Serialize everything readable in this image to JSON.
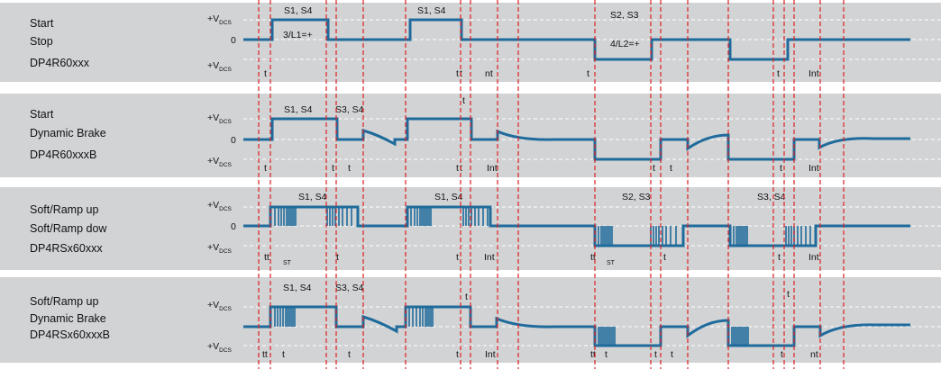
{
  "colors": {
    "band": "#d2d3d5",
    "signal": "#1f6b9c",
    "marker": "#e02020",
    "dashed_ref": "#ffffff",
    "text": "#111111"
  },
  "levels": {
    "plus_prefix": "+V",
    "plus_sub": "DCS",
    "zero": "0"
  },
  "panels": [
    {
      "labels": [
        "Start",
        "Stop",
        "DP4R60xxx"
      ],
      "annotations": [
        {
          "text": "S1, S4"
        },
        {
          "text": "S1, S4"
        },
        {
          "text": "S2, S3"
        },
        {
          "text": "3/L1=+"
        },
        {
          "text": "4/L2=+"
        },
        {
          "text": "t"
        },
        {
          "text": "t"
        },
        {
          "text": "t"
        },
        {
          "text": "nt"
        },
        {
          "text": "t"
        },
        {
          "text": "t"
        },
        {
          "text": "Int"
        }
      ]
    },
    {
      "labels": [
        "Start",
        "Dynamic Brake",
        "DP4R60xxxB"
      ],
      "annotations": [
        {
          "text": "S1, S4"
        },
        {
          "text": "S3, S4"
        },
        {
          "text": "t"
        },
        {
          "text": "t"
        },
        {
          "text": "t"
        },
        {
          "text": "t"
        },
        {
          "text": "t"
        },
        {
          "text": "Int"
        },
        {
          "text": "t"
        },
        {
          "text": "t"
        },
        {
          "text": "t"
        },
        {
          "text": "Int"
        },
        {
          "text": "t"
        }
      ]
    },
    {
      "labels": [
        "Soft/Ramp up",
        "Soft/Ramp dow",
        "DP4RSx60xxx"
      ],
      "annotations": [
        {
          "text": "S1, S4"
        },
        {
          "text": "S1, S4"
        },
        {
          "text": "S2, S3"
        },
        {
          "text": "S3, S4"
        },
        {
          "text": "tt"
        },
        {
          "text": "ST"
        },
        {
          "text": "t"
        },
        {
          "text": "t"
        },
        {
          "text": "Int"
        },
        {
          "text": "tt"
        },
        {
          "text": "ST"
        },
        {
          "text": "t"
        },
        {
          "text": "t"
        },
        {
          "text": "Int"
        }
      ]
    },
    {
      "labels": [
        "Soft/Ramp up",
        "Dynamic Brake",
        "DP4RSx60xxxB"
      ],
      "annotations": [
        {
          "text": "S1, S4"
        },
        {
          "text": "S3, S4"
        },
        {
          "text": "tt"
        },
        {
          "text": "t"
        },
        {
          "text": "t"
        },
        {
          "text": "t"
        },
        {
          "text": "t"
        },
        {
          "text": "Int"
        },
        {
          "text": "tt"
        },
        {
          "text": "t"
        },
        {
          "text": "t"
        },
        {
          "text": "t"
        },
        {
          "text": "t"
        },
        {
          "text": "nt"
        },
        {
          "text": "t"
        }
      ]
    }
  ]
}
